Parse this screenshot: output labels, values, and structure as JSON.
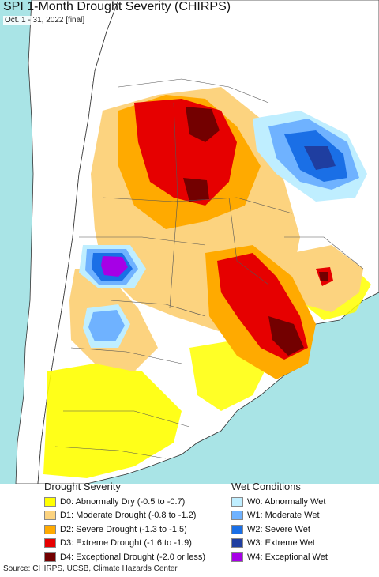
{
  "header": {
    "title": "SPI 1-Month Drought Severity (CHIRPS)",
    "subtitle": "Oct. 1 - 31, 2022 [final]"
  },
  "map": {
    "ocean_color": "#a9e4e6",
    "land_color": "#ffffff",
    "border_color": "#333333"
  },
  "legend": {
    "drought": {
      "heading": "Drought Severity",
      "items": [
        {
          "label": "D0: Abnormally Dry (-0.5 to -0.7)",
          "color": "#ffff00"
        },
        {
          "label": "D1: Moderate Drought (-0.8 to -1.2)",
          "color": "#fcd37f"
        },
        {
          "label": "D2: Severe Drought (-1.3 to -1.5)",
          "color": "#ffaa00"
        },
        {
          "label": "D3: Extreme Drought (-1.6 to -1.9)",
          "color": "#e60000"
        },
        {
          "label": "D4: Exceptional Drought (-2.0 or less)",
          "color": "#730000"
        }
      ]
    },
    "wet": {
      "heading": "Wet Conditions",
      "items": [
        {
          "label": "W0: Abnormally Wet",
          "color": "#bfeeff"
        },
        {
          "label": "W1: Moderate Wet",
          "color": "#6fb2ff"
        },
        {
          "label": "W2: Severe Wet",
          "color": "#1a6fe6"
        },
        {
          "label": "W3: Extreme Wet",
          "color": "#1f3ea0"
        },
        {
          "label": "W4: Exceptional Wet",
          "color": "#a600e6"
        }
      ]
    }
  },
  "footer": {
    "source": "Source: CHIRPS, UCSB, Climate Hazards Center"
  }
}
